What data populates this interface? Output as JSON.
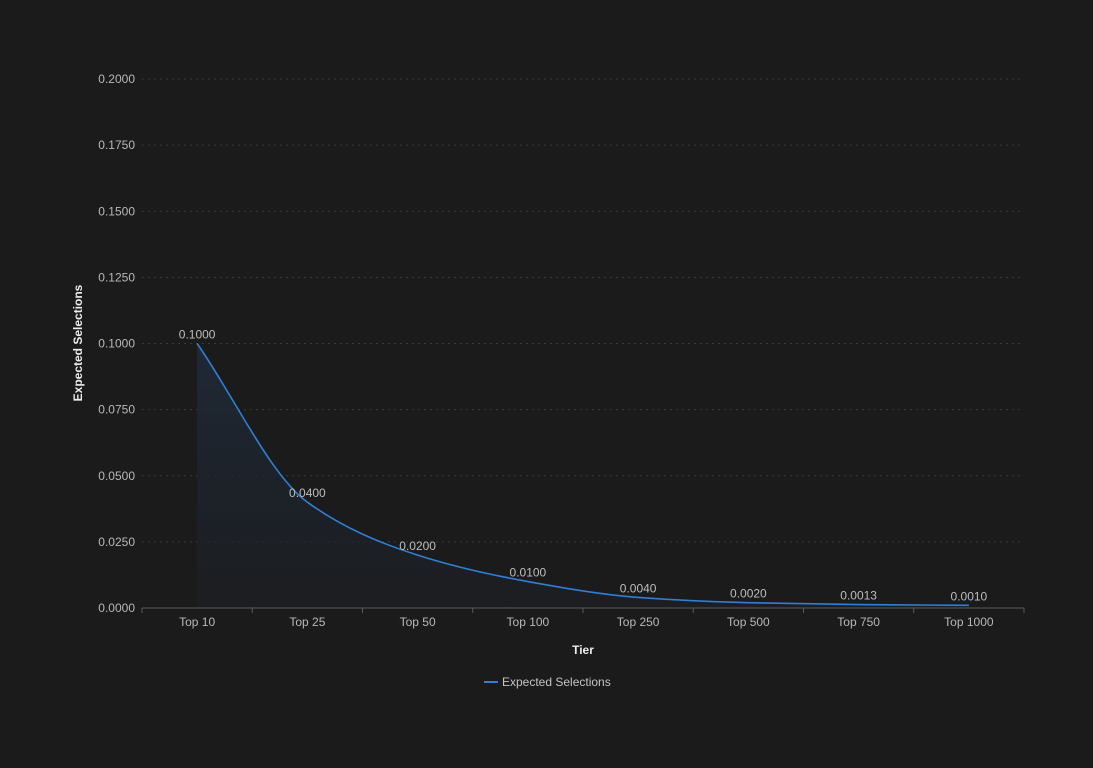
{
  "chart_data": {
    "type": "line",
    "title": "",
    "xlabel": "Tier",
    "ylabel": "Expected Selections",
    "categories": [
      "Top 10",
      "Top 25",
      "Top 50",
      "Top 100",
      "Top 250",
      "Top 500",
      "Top 750",
      "Top 1000"
    ],
    "series": [
      {
        "name": "Expected Selections",
        "values": [
          0.1,
          0.04,
          0.02,
          0.01,
          0.004,
          0.002,
          0.0013,
          0.001
        ],
        "labels": [
          "0.1000",
          "0.0400",
          "0.0200",
          "0.0100",
          "0.0040",
          "0.0020",
          "0.0013",
          "0.0010"
        ],
        "color": "#2e7fd6"
      }
    ],
    "ylim": [
      0,
      0.2
    ],
    "yticks": [
      0,
      0.025,
      0.05,
      0.075,
      0.1,
      0.125,
      0.15,
      0.175,
      0.2
    ],
    "ytick_labels": [
      "0.0000",
      "0.0250",
      "0.0500",
      "0.0750",
      "0.1000",
      "0.1250",
      "0.1500",
      "0.1750",
      "0.2000"
    ],
    "grid": true,
    "area_fill": true,
    "legend": "bottom-center",
    "background": "#1b1b1c"
  },
  "legend": {
    "label": "Expected Selections"
  },
  "axes": {
    "x_title": "Tier",
    "y_title": "Expected Selections"
  }
}
